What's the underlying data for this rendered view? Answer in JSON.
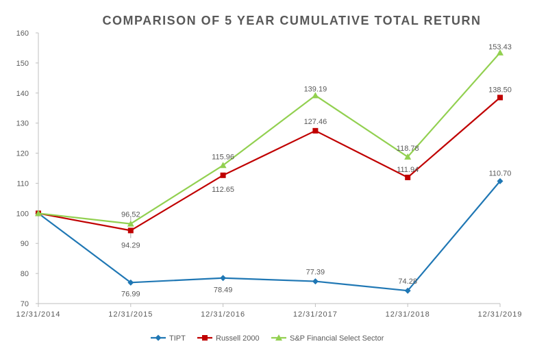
{
  "chart_data": {
    "type": "line",
    "title": "COMPARISON OF 5 YEAR CUMULATIVE TOTAL RETURN",
    "xlabel": "",
    "ylabel": "",
    "categories": [
      "12/31/2014",
      "12/31/2015",
      "12/31/2016",
      "12/31/2017",
      "12/31/2018",
      "12/31/2019"
    ],
    "ylim": [
      70,
      160
    ],
    "yticks": [
      70,
      80,
      90,
      100,
      110,
      120,
      130,
      140,
      150,
      160
    ],
    "grid": false,
    "legend_position": "bottom",
    "series": [
      {
        "name": "TIPT",
        "color": "#1f77b4",
        "marker": "diamond",
        "values": [
          100,
          76.99,
          78.49,
          77.39,
          74.28,
          110.7
        ],
        "labels": [
          "",
          "76.99",
          "78.49",
          "77.39",
          "74.28",
          "110.70"
        ]
      },
      {
        "name": "Russell 2000",
        "color": "#c00000",
        "marker": "square",
        "values": [
          100,
          94.29,
          112.65,
          127.46,
          111.94,
          138.5
        ],
        "labels": [
          "",
          "94.29",
          "112.65",
          "127.46",
          "111.94",
          "138.50"
        ]
      },
      {
        "name": "S&P Financial Select Sector",
        "color": "#92d050",
        "marker": "triangle",
        "values": [
          100,
          96.52,
          115.96,
          139.19,
          118.78,
          153.43
        ],
        "labels": [
          "",
          "96.52",
          "115.96",
          "139.19",
          "118.78",
          "153.43"
        ]
      }
    ]
  }
}
